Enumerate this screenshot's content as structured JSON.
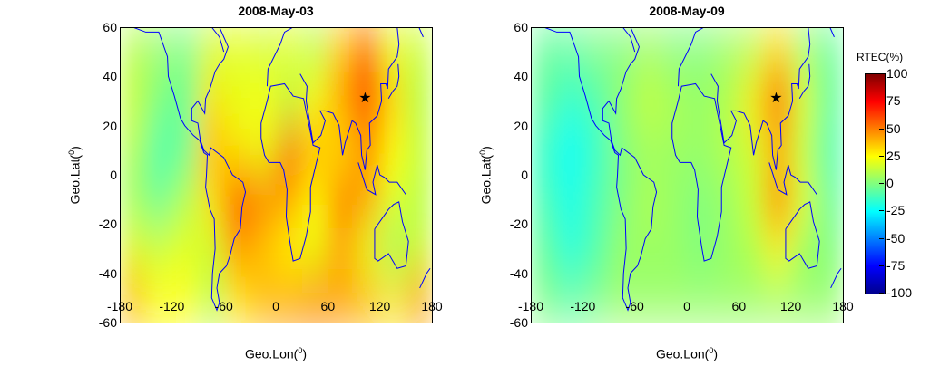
{
  "chart_data": [
    {
      "type": "heatmap",
      "title": "2008-May-03",
      "xlabel": "Geo.Lon",
      "ylabel": "Geo.Lat",
      "unit_sup": "0",
      "xlim": [
        -180,
        180
      ],
      "ylim": [
        -60,
        60
      ],
      "xticks": [
        "-180",
        "-120",
        "-60",
        "0",
        "60",
        "120",
        "180"
      ],
      "yticks": [
        "60",
        "40",
        "20",
        "0",
        "-20",
        "-40",
        "-60"
      ],
      "lon_centers": [
        -165,
        -135,
        -105,
        -75,
        -45,
        -15,
        15,
        45,
        75,
        105,
        135,
        165
      ],
      "lat_centers": [
        50,
        30,
        10,
        -10,
        -30,
        -50
      ],
      "values": [
        [
          10,
          5,
          0,
          15,
          20,
          15,
          20,
          10,
          35,
          55,
          20,
          15
        ],
        [
          15,
          0,
          -5,
          30,
          20,
          25,
          10,
          25,
          45,
          70,
          35,
          10
        ],
        [
          10,
          -10,
          -5,
          40,
          30,
          20,
          55,
          40,
          30,
          45,
          25,
          15
        ],
        [
          5,
          -5,
          10,
          30,
          65,
          55,
          45,
          25,
          55,
          45,
          20,
          10
        ],
        [
          20,
          15,
          20,
          15,
          45,
          35,
          25,
          20,
          40,
          20,
          5,
          15
        ],
        [
          40,
          25,
          25,
          10,
          30,
          40,
          45,
          50,
          45,
          40,
          30,
          45
        ]
      ],
      "marker": {
        "symbol": "star",
        "lon": 103,
        "lat": 31
      }
    },
    {
      "type": "heatmap",
      "title": "2008-May-09",
      "xlabel": "Geo.Lon",
      "ylabel": "Geo.Lat",
      "unit_sup": "0",
      "xlim": [
        -180,
        180
      ],
      "ylim": [
        -60,
        60
      ],
      "xticks": [
        "-180",
        "-120",
        "-60",
        "0",
        "60",
        "120",
        "180"
      ],
      "yticks": [
        "60",
        "40",
        "20",
        "0",
        "-20",
        "-40",
        "-60"
      ],
      "lon_centers": [
        -165,
        -135,
        -105,
        -75,
        -45,
        -15,
        15,
        45,
        75,
        105,
        135,
        165
      ],
      "lat_centers": [
        50,
        30,
        10,
        -10,
        -30,
        -50
      ],
      "values": [
        [
          -5,
          -5,
          0,
          0,
          5,
          0,
          0,
          5,
          10,
          30,
          5,
          -5
        ],
        [
          -5,
          -15,
          -10,
          5,
          15,
          10,
          5,
          10,
          30,
          75,
          20,
          -5
        ],
        [
          -15,
          -25,
          -15,
          0,
          5,
          5,
          5,
          10,
          15,
          35,
          10,
          -10
        ],
        [
          -10,
          -20,
          -10,
          0,
          10,
          5,
          0,
          5,
          15,
          55,
          20,
          -5
        ],
        [
          -5,
          -20,
          -10,
          5,
          5,
          5,
          0,
          5,
          10,
          25,
          5,
          0
        ],
        [
          0,
          -5,
          0,
          5,
          5,
          5,
          5,
          5,
          5,
          5,
          5,
          5
        ]
      ],
      "marker": {
        "symbol": "star",
        "lon": 103,
        "lat": 31
      }
    }
  ],
  "colorbar": {
    "title": "RTEC(%)",
    "range": [
      -100,
      100
    ],
    "ticks": [
      "100",
      "75",
      "50",
      "25",
      "0",
      "-25",
      "-50",
      "-75",
      "-100"
    ]
  },
  "coastline_color": "#0000ff"
}
